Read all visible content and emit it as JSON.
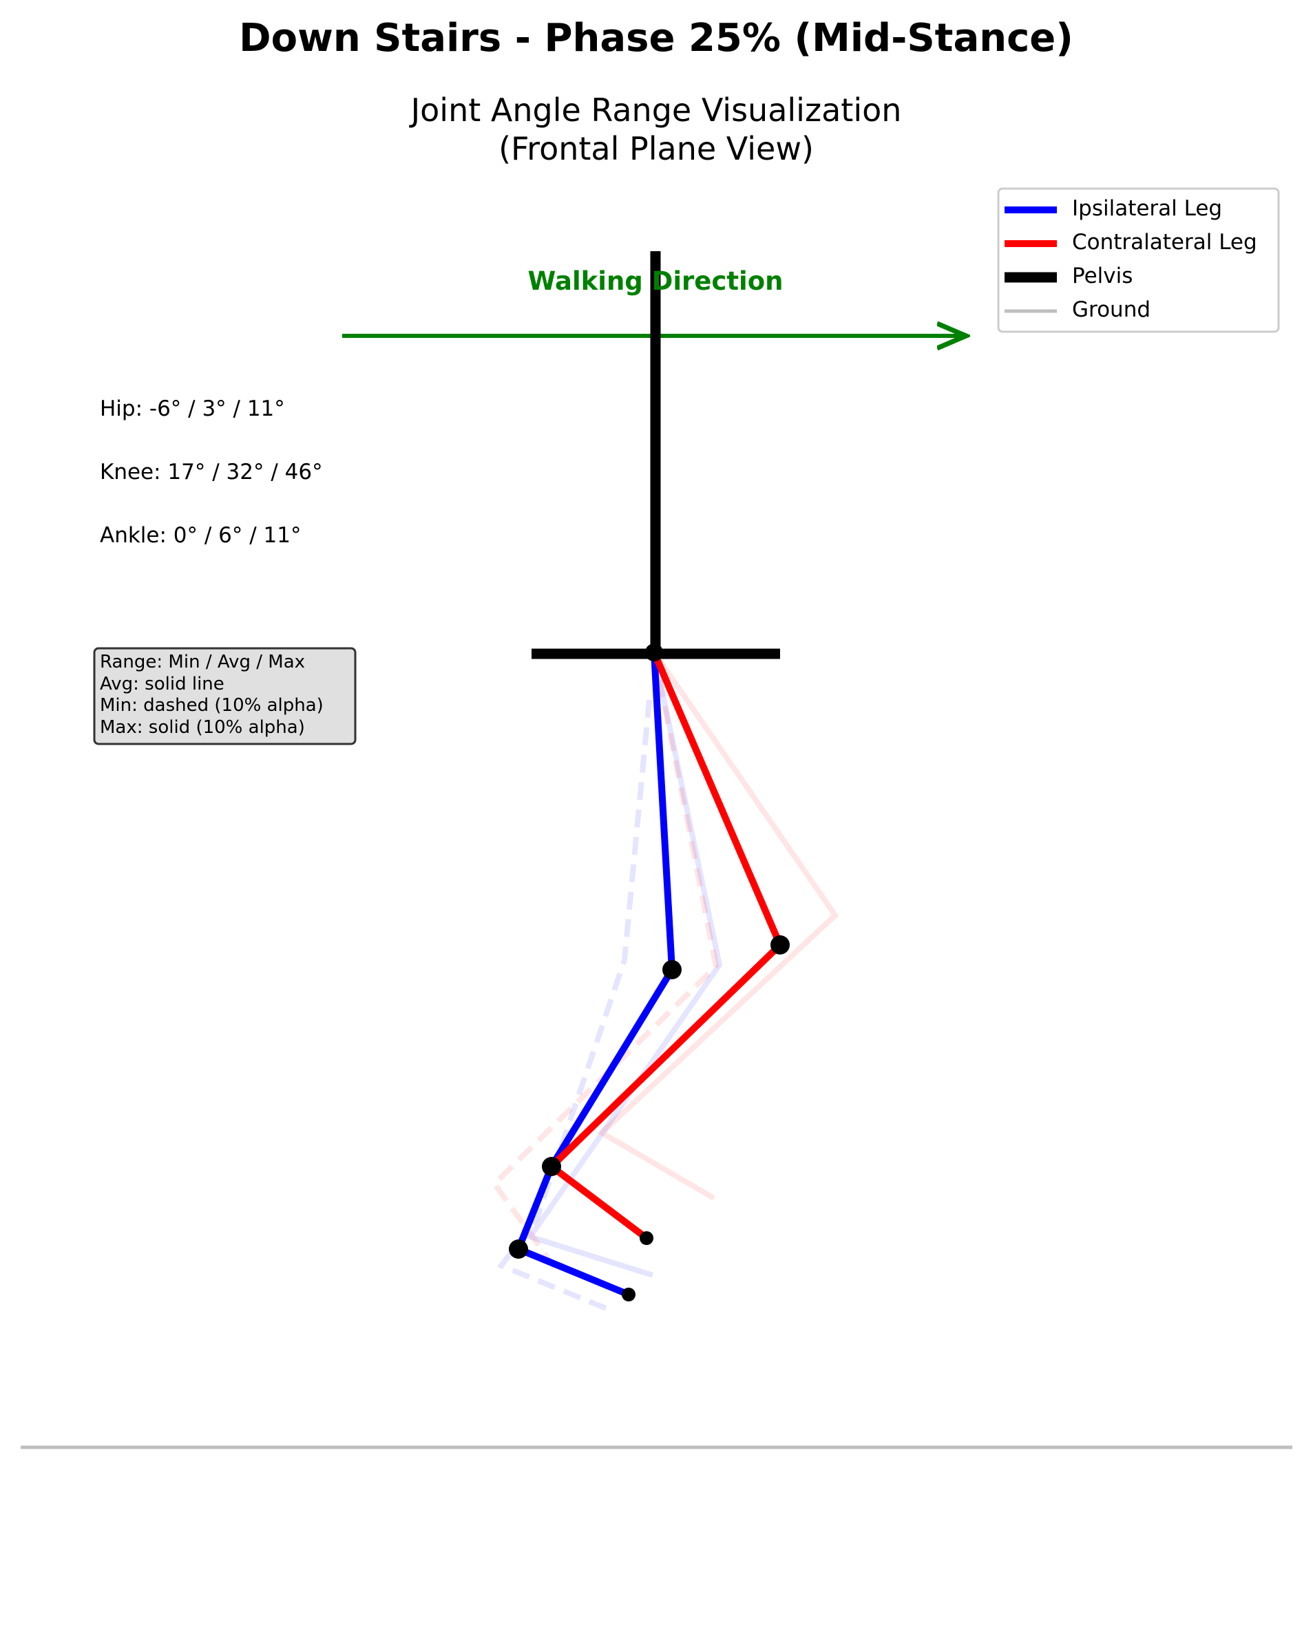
{
  "title": "Down Stairs - Phase 25% (Mid-Stance)",
  "subtitle_line1": "Joint Angle Range Visualization",
  "subtitle_line2": "(Frontal Plane View)",
  "walking_direction": "Walking Direction",
  "angles": {
    "hip": "Hip: -6° / 3° / 11°",
    "knee": "Knee: 17° / 32° / 46°",
    "ankle": "Ankle: 0° / 6° / 11°"
  },
  "info_box": {
    "line1": "Range: Min / Avg / Max",
    "line2": "Avg: solid line",
    "line3": "Min: dashed (10% alpha)",
    "line4": "Max: solid (10% alpha)"
  },
  "legend": {
    "ipsilateral": "Ipsilateral Leg",
    "contralateral": "Contralateral Leg",
    "pelvis": "Pelvis",
    "ground": "Ground"
  },
  "colors": {
    "ipsilateral": "#0000ff",
    "contralateral": "#ff0000",
    "pelvis": "#000000",
    "ground": "#bfbfbf",
    "walking_arrow": "#008000"
  }
}
